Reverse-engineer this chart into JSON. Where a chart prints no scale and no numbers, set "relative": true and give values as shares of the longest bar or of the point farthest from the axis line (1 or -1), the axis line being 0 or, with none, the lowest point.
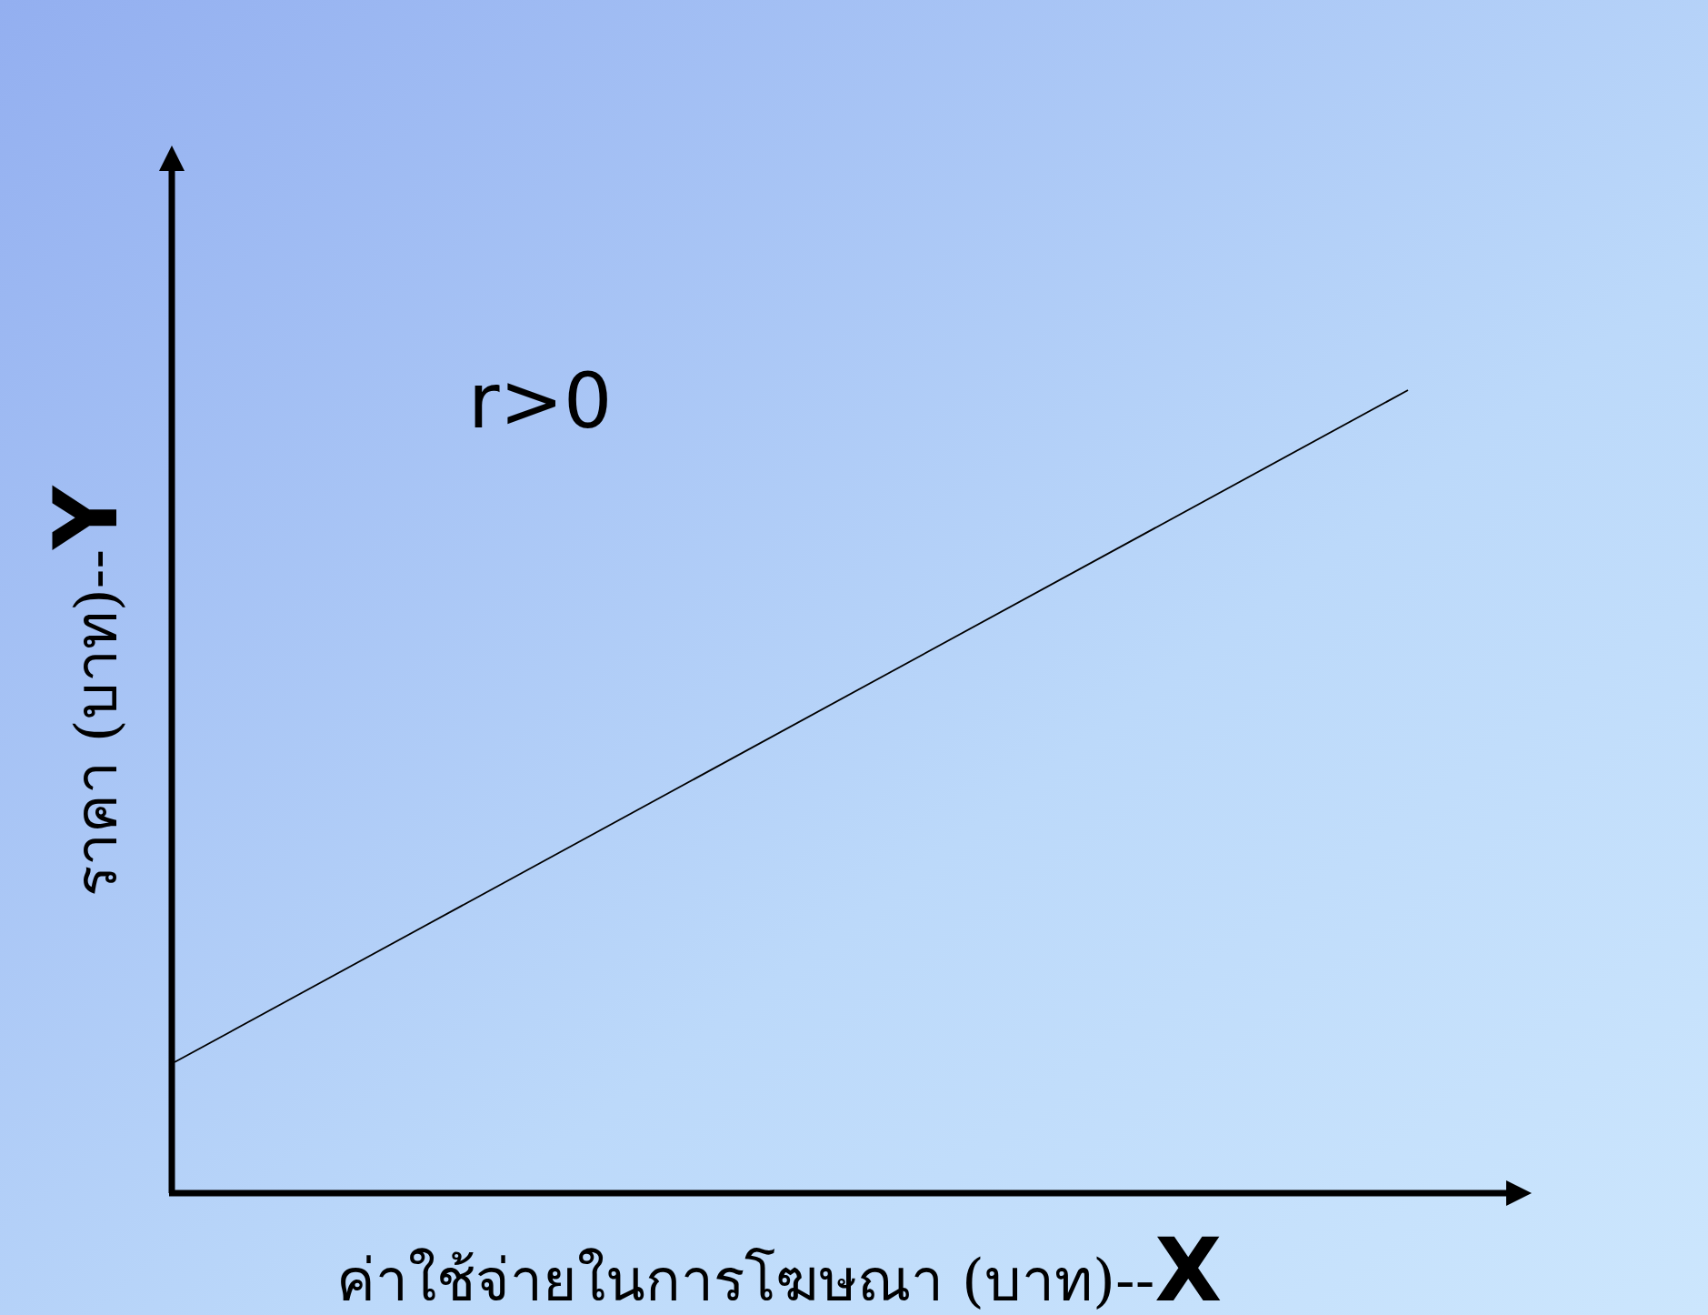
{
  "chart_data": {
    "type": "line",
    "relative": true,
    "categories": [
      null,
      null
    ],
    "series": [
      {
        "color": "#000000",
        "values": [
          0.163,
          1
        ]
      }
    ],
    "xlabel": "ค่าใช้จ่ายในการโฆษณา (บาท)--X",
    "ylabel": "ราคา (บาท)--Y",
    "annotations": [
      "r>0"
    ]
  }
}
